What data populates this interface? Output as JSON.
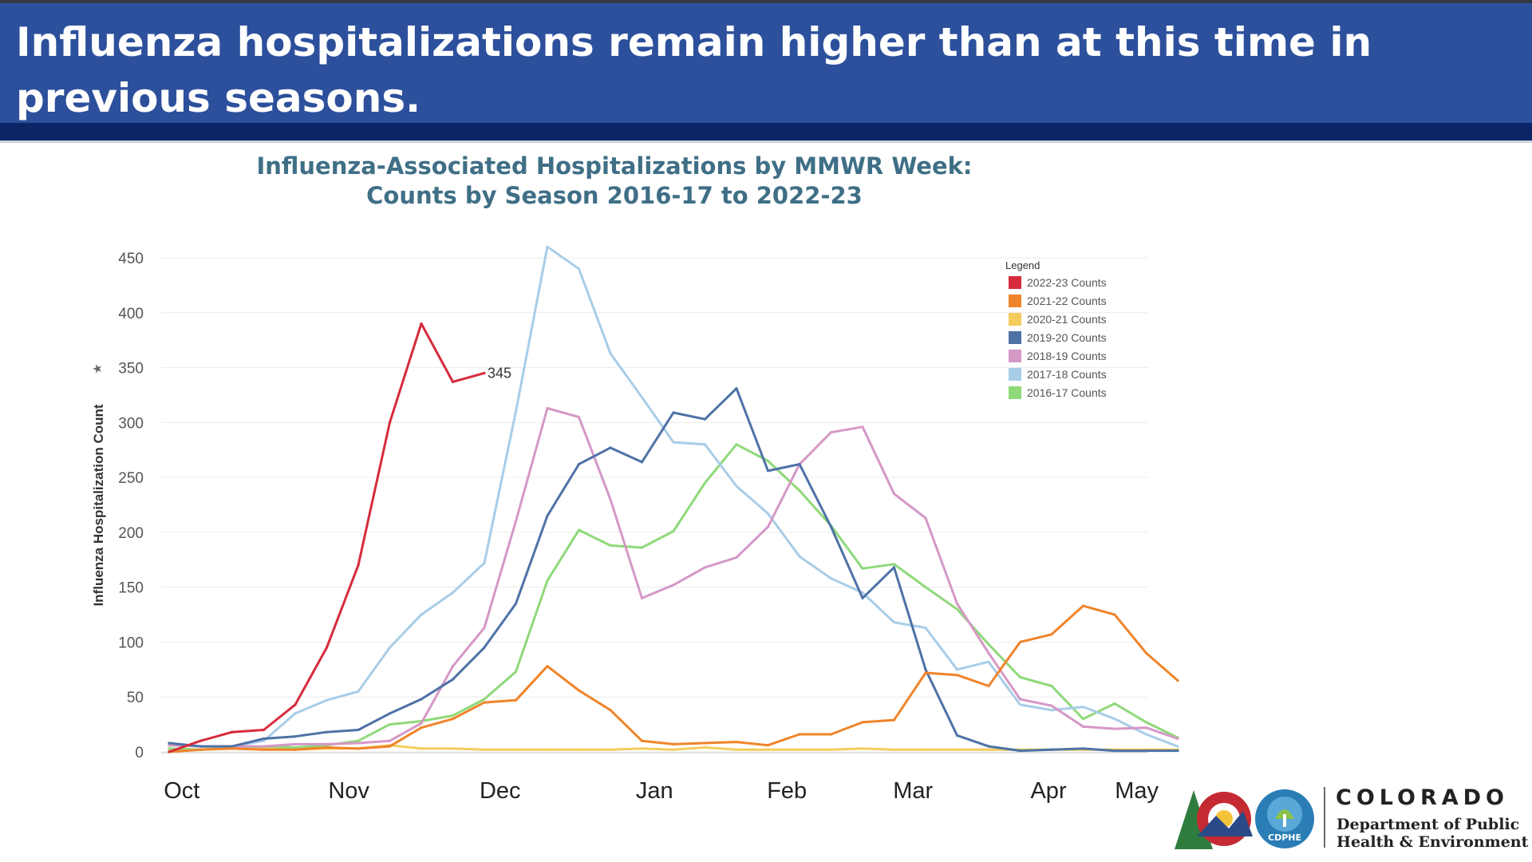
{
  "header": {
    "title": "Influenza hospitalizations remain higher than at this time in previous seasons."
  },
  "colors": {
    "header_bg": "#2d509c",
    "header_band": "#0c2566",
    "chart_title": "#3f6f86"
  },
  "logo": {
    "name": "COLORADO",
    "department_line1": "Department of Public",
    "department_line2": "Health & Environment",
    "badge_text": "CDPHE"
  },
  "chart_data": {
    "type": "line",
    "title_line1": "Influenza-Associated Hospitalizations by MMWR Week:",
    "title_line2": "Counts by Season 2016-17 to 2022-23",
    "ylabel": "Influenza Hospitalization Count",
    "xlabel": "",
    "ylim": [
      0,
      450
    ],
    "yticks": [
      0,
      50,
      100,
      150,
      200,
      250,
      300,
      350,
      400,
      450
    ],
    "x_unit": "MMWR week index (0 = first week of October)",
    "xlim": [
      0,
      31
    ],
    "month_labels": [
      {
        "label": "Oct",
        "week": 0.4
      },
      {
        "label": "Nov",
        "week": 5.7
      },
      {
        "label": "Dec",
        "week": 10.5
      },
      {
        "label": "Jan",
        "week": 15.4
      },
      {
        "label": "Feb",
        "week": 19.6
      },
      {
        "label": "Mar",
        "week": 23.6
      },
      {
        "label": "Apr",
        "week": 27.9
      },
      {
        "label": "May",
        "week": 30.7
      }
    ],
    "grid": true,
    "legend": {
      "title": "Legend",
      "placement": "top-right"
    },
    "annotation": {
      "text": "345",
      "series": "2022-23 Counts"
    },
    "series": [
      {
        "name": "2022-23 Counts",
        "color": "#d62b3c",
        "values": [
          0,
          10,
          18,
          20,
          43,
          95,
          170,
          300,
          390,
          337,
          345
        ]
      },
      {
        "name": "2021-22 Counts",
        "color": "#f0842a",
        "values": [
          0,
          2,
          3,
          2,
          2,
          4,
          3,
          5,
          22,
          30,
          45,
          47,
          78,
          56,
          38,
          10,
          7,
          8,
          9,
          6,
          16,
          16,
          27,
          29,
          72,
          70,
          60,
          100,
          107,
          133,
          125,
          90,
          65
        ]
      },
      {
        "name": "2020-21 Counts",
        "color": "#f3cc5c",
        "values": [
          2,
          2,
          3,
          3,
          2,
          3,
          3,
          6,
          3,
          3,
          2,
          2,
          2,
          2,
          2,
          3,
          2,
          4,
          2,
          2,
          2,
          2,
          3,
          2,
          2,
          2,
          2,
          2,
          2,
          2,
          2,
          2,
          2
        ]
      },
      {
        "name": "2019-20 Counts",
        "color": "#4e72a6",
        "values": [
          8,
          5,
          5,
          12,
          14,
          18,
          20,
          35,
          48,
          66,
          95,
          135,
          215,
          262,
          277,
          264,
          309,
          303,
          331,
          256,
          262,
          205,
          140,
          168,
          75,
          15,
          5,
          1,
          2,
          3,
          1,
          1,
          1
        ]
      },
      {
        "name": "2018-19 Counts",
        "color": "#d598c6",
        "values": [
          6,
          5,
          5,
          5,
          7,
          7,
          8,
          10,
          26,
          78,
          113,
          210,
          313,
          305,
          230,
          140,
          152,
          168,
          177,
          205,
          262,
          291,
          296,
          235,
          213,
          135,
          90,
          48,
          42,
          23,
          21,
          22,
          12
        ]
      },
      {
        "name": "2017-18 Counts",
        "color": "#a8cde8",
        "values": [
          7,
          5,
          5,
          10,
          35,
          47,
          55,
          95,
          125,
          145,
          172,
          310,
          460,
          440,
          363,
          323,
          282,
          280,
          242,
          217,
          178,
          158,
          145,
          118,
          113,
          75,
          82,
          43,
          38,
          41,
          30,
          16,
          5
        ]
      },
      {
        "name": "2016-17 Counts",
        "color": "#8fd97a",
        "values": [
          3,
          2,
          4,
          5,
          4,
          6,
          10,
          25,
          28,
          33,
          48,
          73,
          156,
          202,
          188,
          186,
          201,
          245,
          280,
          265,
          238,
          206,
          167,
          171,
          150,
          130,
          98,
          68,
          60,
          30,
          44,
          27,
          13
        ]
      }
    ]
  }
}
